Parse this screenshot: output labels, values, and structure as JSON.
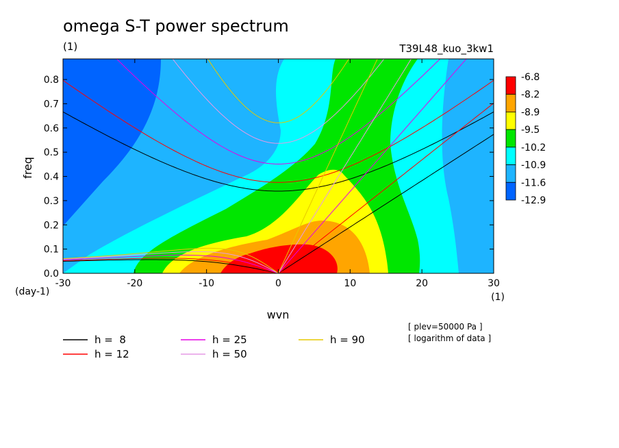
{
  "chart_data": {
    "type": "heatmap",
    "title": "omega S-T power spectrum",
    "subtitle_left": "(1)",
    "subtitle_right": "T39L48_kuo_3kw1",
    "xlabel": "wvn",
    "ylabel": "freq",
    "x_unit": "(1)",
    "y_unit": "(day-1)",
    "xlim": [
      -30,
      30
    ],
    "ylim": [
      0,
      0.885
    ],
    "x_ticks": [
      -30,
      -20,
      -10,
      0,
      10,
      20,
      30
    ],
    "x_tick_labels": [
      "-30",
      "-20",
      "-10",
      "0",
      "10",
      "20",
      "30"
    ],
    "y_ticks": [
      0,
      0.1,
      0.2,
      0.3,
      0.4,
      0.5,
      0.6,
      0.7,
      0.8
    ],
    "y_tick_labels": [
      "0.0",
      "0.1",
      "0.2",
      "0.3",
      "0.4",
      "0.5",
      "0.6",
      "0.7",
      "0.8"
    ],
    "colorbar": {
      "labels": [
        "-6.8",
        "-8.2",
        "-8.9",
        "-9.5",
        "-10.2",
        "-10.9",
        "-11.6",
        "-12.9"
      ],
      "colors": [
        "#ff0000",
        "#ffa500",
        "#ffff00",
        "#00e600",
        "#00ffff",
        "#1eb4ff",
        "#0064ff"
      ]
    },
    "notes": [
      "[ plev=50000 Pa ]",
      "[ logarithm of data ]"
    ],
    "dispersion_curves": [
      {
        "label": "h =  8",
        "h": 8,
        "color": "#000000"
      },
      {
        "label": "h = 12",
        "h": 12,
        "color": "#ff0000"
      },
      {
        "label": "h = 25",
        "h": 25,
        "color": "#e600e6"
      },
      {
        "label": "h = 50",
        "h": 50,
        "color": "#e69ae6"
      },
      {
        "label": "h = 90",
        "h": 90,
        "color": "#e6c800"
      }
    ],
    "field": {
      "background_level_color": "#0064ff",
      "regions_from_outer_to_inner": [
        "#1eb4ff",
        "#00ffff",
        "#00e600",
        "#ffff00",
        "#ffa500",
        "#ff0000"
      ]
    }
  }
}
